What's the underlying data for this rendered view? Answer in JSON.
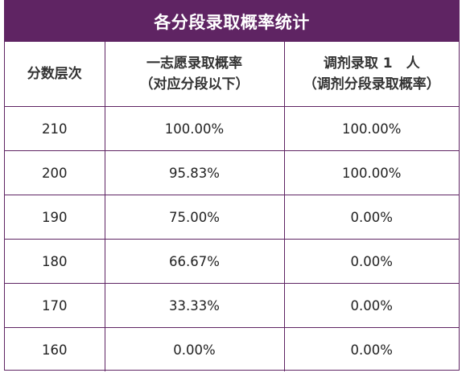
{
  "title": "各分段录取概率统计",
  "headers": {
    "col1": "分数层次",
    "col2_line1": "一志愿录取概率",
    "col2_line2": "（对应分段以下）",
    "col3_line1": "调剂录取 1　人",
    "col3_line2": "（调剂分段录取概率）"
  },
  "rows": [
    {
      "score": "210",
      "first_choice": "100.00%",
      "adjust": "100.00%"
    },
    {
      "score": "200",
      "first_choice": "95.83%",
      "adjust": "100.00%"
    },
    {
      "score": "190",
      "first_choice": "75.00%",
      "adjust": "0.00%"
    },
    {
      "score": "180",
      "first_choice": "66.67%",
      "adjust": "0.00%"
    },
    {
      "score": "170",
      "first_choice": "33.33%",
      "adjust": "0.00%"
    },
    {
      "score": "160",
      "first_choice": "0.00%",
      "adjust": "0.00%"
    }
  ],
  "colors": {
    "header_bg": "#5f2463",
    "border": "#5f2463",
    "header_text": "#ffffff"
  }
}
